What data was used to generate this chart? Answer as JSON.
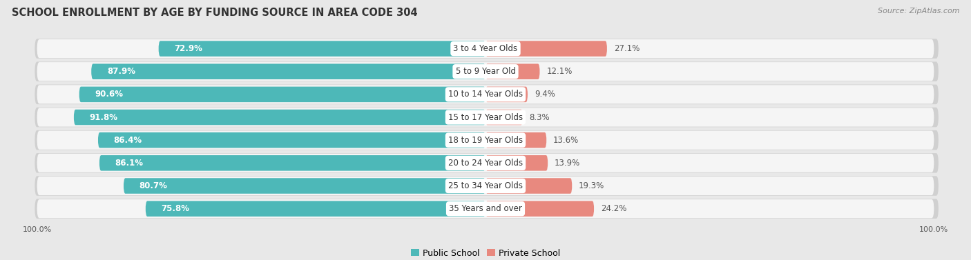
{
  "title": "SCHOOL ENROLLMENT BY AGE BY FUNDING SOURCE IN AREA CODE 304",
  "source": "Source: ZipAtlas.com",
  "categories": [
    "3 to 4 Year Olds",
    "5 to 9 Year Old",
    "10 to 14 Year Olds",
    "15 to 17 Year Olds",
    "18 to 19 Year Olds",
    "20 to 24 Year Olds",
    "25 to 34 Year Olds",
    "35 Years and over"
  ],
  "public_values": [
    72.9,
    87.9,
    90.6,
    91.8,
    86.4,
    86.1,
    80.7,
    75.8
  ],
  "private_values": [
    27.1,
    12.1,
    9.4,
    8.3,
    13.6,
    13.9,
    19.3,
    24.2
  ],
  "public_color": "#4db8b8",
  "private_color": "#e8897f",
  "public_label": "Public School",
  "private_label": "Private School",
  "background_color": "#e8e8e8",
  "row_bg_color": "#f5f5f5",
  "row_shadow_color": "#d0d0d0",
  "title_fontsize": 10.5,
  "bar_label_fontsize": 8.5,
  "pct_label_fontsize": 8.5,
  "axis_label_fontsize": 8,
  "legend_fontsize": 9,
  "source_fontsize": 8
}
